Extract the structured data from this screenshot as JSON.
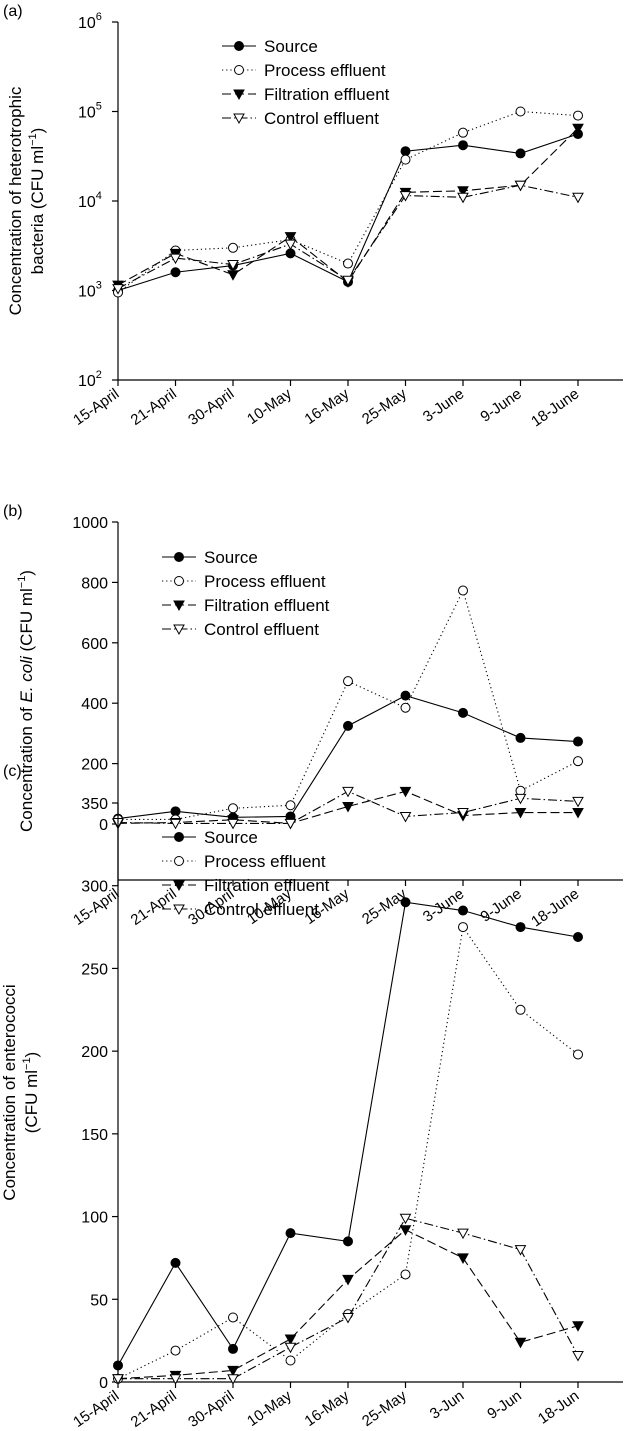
{
  "chart_data": [
    {
      "panel_label": "(a)",
      "type": "line",
      "y_scale": "log",
      "ylim": [
        100,
        1000000
      ],
      "ytick_labels": [
        "10^2",
        "10^3",
        "10^4",
        "10^5",
        "10^6"
      ],
      "ylabel_lines": [
        "Concentration of heterotrophic",
        "bacteria (CFU ml^-1)"
      ],
      "categories": [
        "15-April",
        "21-April",
        "30-April",
        "10-May",
        "16-May",
        "25-May",
        "3-June",
        "9-June",
        "18-June"
      ],
      "legend_position": "top-left",
      "series": [
        {
          "name": "Source",
          "marker": "filled-circle",
          "dash": "solid",
          "values": [
            1000,
            1600,
            1900,
            2600,
            1250,
            36000,
            42000,
            34000,
            56000
          ]
        },
        {
          "name": "Process effluent",
          "marker": "open-circle",
          "dash": "dotted",
          "values": [
            950,
            2800,
            3000,
            3700,
            2000,
            29000,
            58000,
            100000,
            90000
          ]
        },
        {
          "name": "Filtration effluent",
          "marker": "filled-triangle",
          "dash": "dashed",
          "values": [
            1150,
            2600,
            1500,
            4000,
            1250,
            12500,
            13000,
            15000,
            65000
          ]
        },
        {
          "name": "Control effluent",
          "marker": "open-triangle",
          "dash": "dashdot",
          "values": [
            1050,
            2300,
            1950,
            3300,
            1300,
            11500,
            11000,
            15000,
            11000
          ]
        }
      ]
    },
    {
      "panel_label": "(b)",
      "type": "line",
      "ylim": [
        -170,
        1000
      ],
      "yticks": [
        0,
        200,
        400,
        600,
        800,
        1000
      ],
      "ytick_labels": [
        "0",
        "200",
        "400",
        "600",
        "800",
        "1000"
      ],
      "ylabel_parts": [
        "Concentration of ",
        "E. coli",
        " (CFU ml",
        "−1",
        ")"
      ],
      "categories": [
        "15-April",
        "21-April",
        "30-April",
        "10-May",
        "16-May",
        "25-May",
        "3-June",
        "9-June",
        "18-June"
      ],
      "legend_position": "top-left",
      "series": [
        {
          "name": "Source",
          "marker": "filled-circle",
          "dash": "solid",
          "values": [
            18,
            42,
            22,
            25,
            325,
            425,
            368,
            285,
            273
          ]
        },
        {
          "name": "Process effluent",
          "marker": "open-circle",
          "dash": "dotted",
          "values": [
            15,
            15,
            52,
            62,
            473,
            385,
            773,
            110,
            208
          ]
        },
        {
          "name": "Filtration effluent",
          "marker": "filled-triangle",
          "dash": "dashed",
          "values": [
            2,
            5,
            14,
            2,
            58,
            108,
            28,
            38,
            38
          ]
        },
        {
          "name": "Control effluent",
          "marker": "open-triangle",
          "dash": "dashdot",
          "values": [
            5,
            2,
            2,
            2,
            108,
            25,
            38,
            85,
            75
          ]
        }
      ]
    },
    {
      "panel_label": "(c)",
      "type": "line",
      "ylim": [
        0,
        350
      ],
      "yticks": [
        0,
        50,
        100,
        150,
        200,
        250,
        300,
        350
      ],
      "ytick_labels": [
        "0",
        "50",
        "100",
        "150",
        "200",
        "250",
        "300",
        "350"
      ],
      "ylabel_lines": [
        "Concentration of enterococci",
        "(CFU ml^-1)"
      ],
      "categories": [
        "15-April",
        "21-April",
        "30-April",
        "10-May",
        "16-May",
        "25-May",
        "3-Jun",
        "9-Jun",
        "18-Jun"
      ],
      "legend_position": "top-left",
      "series": [
        {
          "name": "Source",
          "marker": "filled-circle",
          "dash": "solid",
          "values": [
            10,
            72,
            20,
            90,
            85,
            290,
            285,
            275,
            269
          ]
        },
        {
          "name": "Process effluent",
          "marker": "open-circle",
          "dash": "dotted",
          "values": [
            2,
            19,
            39,
            13,
            41,
            65,
            275,
            225,
            198
          ]
        },
        {
          "name": "Filtration effluent",
          "marker": "filled-triangle",
          "dash": "dashed",
          "values": [
            2,
            4,
            7,
            26,
            62,
            92,
            75,
            24,
            34
          ]
        },
        {
          "name": "Control effluent",
          "marker": "open-triangle",
          "dash": "dashdot",
          "values": [
            2,
            2,
            2,
            21,
            39,
            99,
            90,
            80,
            16
          ]
        }
      ]
    }
  ]
}
